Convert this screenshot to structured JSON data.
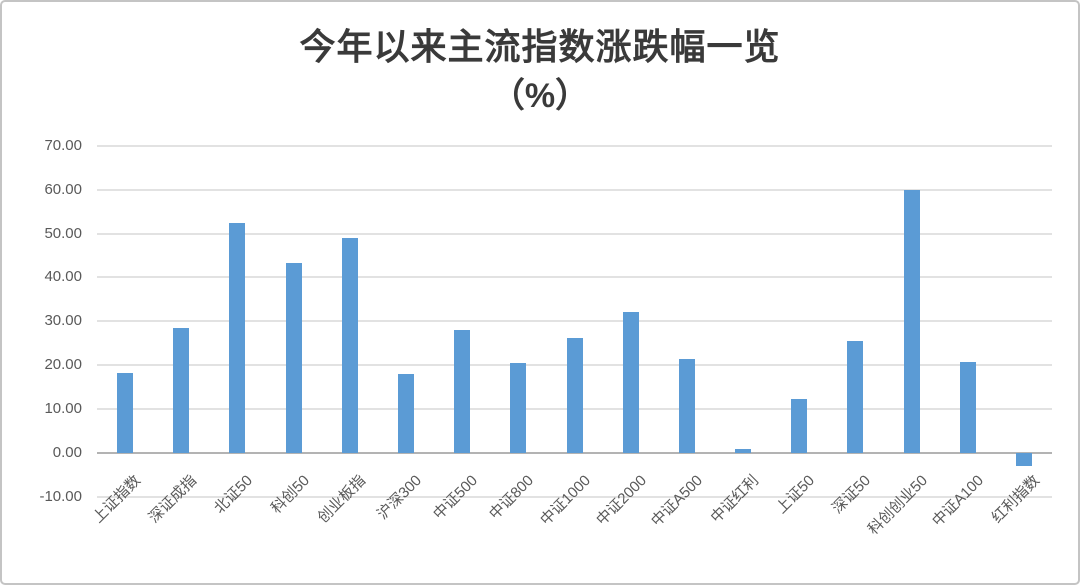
{
  "chart_data": {
    "type": "bar",
    "title": "今年以来主流指数涨跌幅一览",
    "subtitle": "（%）",
    "categories": [
      "上证指数",
      "深证成指",
      "北证50",
      "科创50",
      "创业板指",
      "沪深300",
      "中证500",
      "中证800",
      "中证1000",
      "中证2000",
      "中证A500",
      "中证红利",
      "上证50",
      "深证50",
      "科创创业50",
      "中证A100",
      "红利指数"
    ],
    "values": [
      18.2,
      28.5,
      52.5,
      43.3,
      48.9,
      18.1,
      28.0,
      20.6,
      26.2,
      32.2,
      21.3,
      1.0,
      12.4,
      25.4,
      60.0,
      20.7,
      -3.0
    ],
    "xlabel": "",
    "ylabel": "",
    "ylim": [
      -10,
      70
    ],
    "ytick_step": 10,
    "ytick_labels": [
      "70.00",
      "60.00",
      "50.00",
      "40.00",
      "30.00",
      "20.00",
      "10.00",
      "0.00",
      "-10.00"
    ],
    "grid": true,
    "legend_position": "none",
    "x_label_rotation_deg": 45,
    "colors": {
      "bar": "#5b9bd5",
      "gridline": "#e2e2e2",
      "axis_line": "#b3b3b3",
      "tick_text": "#595959",
      "title_text": "#3a3a3a",
      "frame_border": "#c4c4c4"
    }
  }
}
